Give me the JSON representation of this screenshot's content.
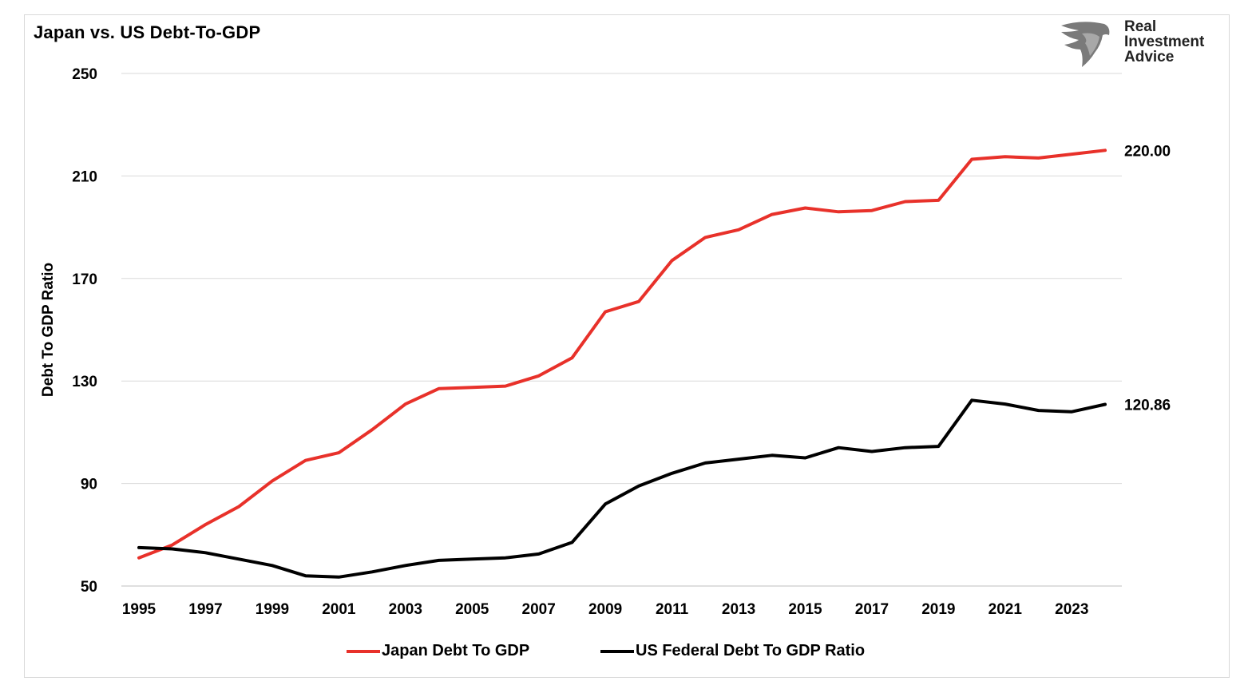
{
  "chart_data": {
    "type": "line",
    "title": "Japan vs. US Debt-To-GDP",
    "ylabel": "Debt To GDP Ratio",
    "xlabel": "",
    "ylim": [
      50,
      250
    ],
    "yticks": [
      50,
      90,
      130,
      170,
      210,
      250
    ],
    "xlim": [
      1995,
      2024
    ],
    "xticks": [
      1995,
      1997,
      1999,
      2001,
      2003,
      2005,
      2007,
      2009,
      2011,
      2013,
      2015,
      2017,
      2019,
      2021,
      2023
    ],
    "grid": "horizontal",
    "legend_position": "bottom",
    "x": [
      1995,
      1996,
      1997,
      1998,
      1999,
      2000,
      2001,
      2002,
      2003,
      2004,
      2005,
      2006,
      2007,
      2008,
      2009,
      2010,
      2011,
      2012,
      2013,
      2014,
      2015,
      2016,
      2017,
      2018,
      2019,
      2020,
      2021,
      2022,
      2023,
      2024
    ],
    "series": [
      {
        "name": "Japan Debt To GDP",
        "color": "#e8312a",
        "values": [
          61,
          66,
          74,
          81,
          91,
          99,
          102,
          111,
          121,
          127,
          127.5,
          128,
          132,
          139,
          157,
          161,
          177,
          186,
          189,
          195,
          197.5,
          196,
          196.5,
          200,
          200.5,
          216.5,
          217.5,
          217,
          218.5,
          220
        ],
        "end_label": "220.00"
      },
      {
        "name": "US Federal Debt To GDP Ratio",
        "color": "#000000",
        "values": [
          65,
          64.5,
          63,
          60.5,
          58,
          54,
          53.5,
          55.5,
          58,
          60,
          60.5,
          61,
          62.5,
          67,
          82,
          89,
          94,
          98,
          99.5,
          101,
          100,
          104,
          102.5,
          104,
          104.5,
          122.5,
          121,
          118.5,
          118,
          120.86
        ],
        "end_label": "120.86"
      }
    ]
  },
  "logo": {
    "line1": "Real",
    "line2": "Investment",
    "line3": "Advice"
  }
}
